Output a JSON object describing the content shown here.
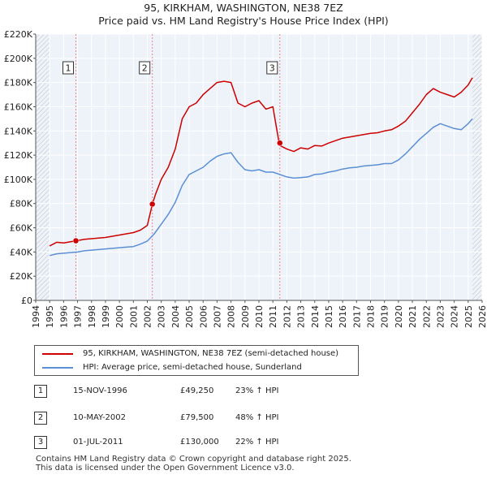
{
  "chart_data": {
    "type": "line",
    "title": "95, KIRKHAM, WASHINGTON, NE38 7EZ",
    "subtitle": "Price paid vs. HM Land Registry's House Price Index (HPI)",
    "xlim": [
      1994,
      2026
    ],
    "ylim": [
      0,
      220000
    ],
    "x_ticks": [
      "1994",
      "1995",
      "1996",
      "1997",
      "1998",
      "1999",
      "2000",
      "2001",
      "2002",
      "2003",
      "2004",
      "2005",
      "2006",
      "2007",
      "2008",
      "2009",
      "2010",
      "2011",
      "2012",
      "2013",
      "2014",
      "2015",
      "2016",
      "2017",
      "2018",
      "2019",
      "2020",
      "2021",
      "2022",
      "2023",
      "2024",
      "2025",
      "2026"
    ],
    "y_ticks": [
      {
        "value": 0,
        "label": "£0"
      },
      {
        "value": 20000,
        "label": "£20K"
      },
      {
        "value": 40000,
        "label": "£40K"
      },
      {
        "value": 60000,
        "label": "£60K"
      },
      {
        "value": 80000,
        "label": "£80K"
      },
      {
        "value": 100000,
        "label": "£100K"
      },
      {
        "value": 120000,
        "label": "£120K"
      },
      {
        "value": 140000,
        "label": "£140K"
      },
      {
        "value": 160000,
        "label": "£160K"
      },
      {
        "value": 180000,
        "label": "£180K"
      },
      {
        "value": 200000,
        "label": "£200K"
      },
      {
        "value": 220000,
        "label": "£220K"
      }
    ],
    "grid": true,
    "data_start": 1995.0,
    "data_end": 2025.3,
    "series": [
      {
        "name": "95, KIRKHAM, WASHINGTON, NE38 7EZ (semi-detached house)",
        "color": "#cc0000",
        "x": [
          1995.0,
          1995.5,
          1996.0,
          1996.5,
          1996.88,
          1997.5,
          1998.0,
          1998.5,
          1999.0,
          1999.5,
          2000.0,
          2000.5,
          2001.0,
          2001.5,
          2002.0,
          2002.36,
          2002.6,
          2003.0,
          2003.5,
          2004.0,
          2004.5,
          2005.0,
          2005.5,
          2006.0,
          2006.5,
          2007.0,
          2007.5,
          2008.0,
          2008.5,
          2009.0,
          2009.5,
          2010.0,
          2010.5,
          2011.0,
          2011.45,
          2011.5,
          2012.0,
          2012.5,
          2013.0,
          2013.5,
          2014.0,
          2014.5,
          2015.0,
          2015.5,
          2016.0,
          2016.5,
          2017.0,
          2017.5,
          2018.0,
          2018.5,
          2019.0,
          2019.5,
          2020.0,
          2020.5,
          2021.0,
          2021.5,
          2022.0,
          2022.5,
          2023.0,
          2023.5,
          2024.0,
          2024.5,
          2025.0,
          2025.3
        ],
        "y": [
          45000,
          48000,
          47500,
          48500,
          49250,
          50500,
          51000,
          51500,
          52000,
          53000,
          54000,
          55000,
          56000,
          58000,
          62000,
          79500,
          88000,
          100000,
          110000,
          125000,
          150000,
          160000,
          163000,
          170000,
          175000,
          180000,
          181000,
          180000,
          163000,
          160000,
          163000,
          165000,
          158000,
          160000,
          130000,
          128000,
          125000,
          123000,
          126000,
          125000,
          128000,
          127500,
          130000,
          132000,
          134000,
          135000,
          136000,
          137000,
          138000,
          138500,
          140000,
          141000,
          144000,
          148000,
          155000,
          162000,
          170000,
          175000,
          172000,
          170000,
          168000,
          172000,
          178000,
          184000
        ]
      },
      {
        "name": "HPI: Average price, semi-detached house, Sunderland",
        "color": "#5b8fd4",
        "x": [
          1995.0,
          1995.5,
          1996.0,
          1996.5,
          1997.0,
          1997.5,
          1998.0,
          1998.5,
          1999.0,
          1999.5,
          2000.0,
          2000.5,
          2001.0,
          2001.5,
          2002.0,
          2002.5,
          2003.0,
          2003.5,
          2004.0,
          2004.5,
          2005.0,
          2005.5,
          2006.0,
          2006.5,
          2007.0,
          2007.5,
          2008.0,
          2008.5,
          2009.0,
          2009.5,
          2010.0,
          2010.5,
          2011.0,
          2011.5,
          2012.0,
          2012.5,
          2013.0,
          2013.5,
          2014.0,
          2014.5,
          2015.0,
          2015.5,
          2016.0,
          2016.5,
          2017.0,
          2017.5,
          2018.0,
          2018.5,
          2019.0,
          2019.5,
          2020.0,
          2020.5,
          2021.0,
          2021.5,
          2022.0,
          2022.5,
          2023.0,
          2023.5,
          2024.0,
          2024.5,
          2025.0,
          2025.3
        ],
        "y": [
          37000,
          38500,
          39000,
          39500,
          40000,
          41000,
          41500,
          42000,
          42500,
          43000,
          43500,
          44000,
          44500,
          46500,
          49000,
          55000,
          63000,
          71000,
          81000,
          95000,
          104000,
          107000,
          110000,
          115000,
          119000,
          121000,
          122000,
          114000,
          108000,
          107000,
          108000,
          106000,
          106000,
          104000,
          102000,
          101000,
          101500,
          102000,
          104000,
          104500,
          106000,
          107000,
          108500,
          109500,
          110000,
          111000,
          111500,
          112000,
          113000,
          113000,
          116000,
          121000,
          127000,
          133000,
          138000,
          143000,
          146000,
          144000,
          142000,
          141000,
          146000,
          150000
        ]
      }
    ],
    "sales": [
      {
        "num": "1",
        "x": 1996.88,
        "y": 49250
      },
      {
        "num": "2",
        "x": 2002.36,
        "y": 79500
      },
      {
        "num": "3",
        "x": 2011.5,
        "y": 130000
      }
    ]
  },
  "legend": {
    "property_label": "95, KIRKHAM, WASHINGTON, NE38 7EZ (semi-detached house)",
    "hpi_label": "HPI: Average price, semi-detached house, Sunderland"
  },
  "sales_table": [
    {
      "num": "1",
      "date": "15-NOV-1996",
      "price": "£49,250",
      "hpi": "23% ↑ HPI"
    },
    {
      "num": "2",
      "date": "10-MAY-2002",
      "price": "£79,500",
      "hpi": "48% ↑ HPI"
    },
    {
      "num": "3",
      "date": "01-JUL-2011",
      "price": "£130,000",
      "hpi": "22% ↑ HPI"
    }
  ],
  "footer": {
    "line1": "Contains HM Land Registry data © Crown copyright and database right 2025.",
    "line2": "This data is licensed under the Open Government Licence v3.0."
  },
  "colors": {
    "property": "#cc0000",
    "hpi": "#5b8fd4",
    "plot_bg": "#eef3fa",
    "grid": "#ffffff",
    "hatch": "#999999",
    "sale_line": "#e88888"
  }
}
